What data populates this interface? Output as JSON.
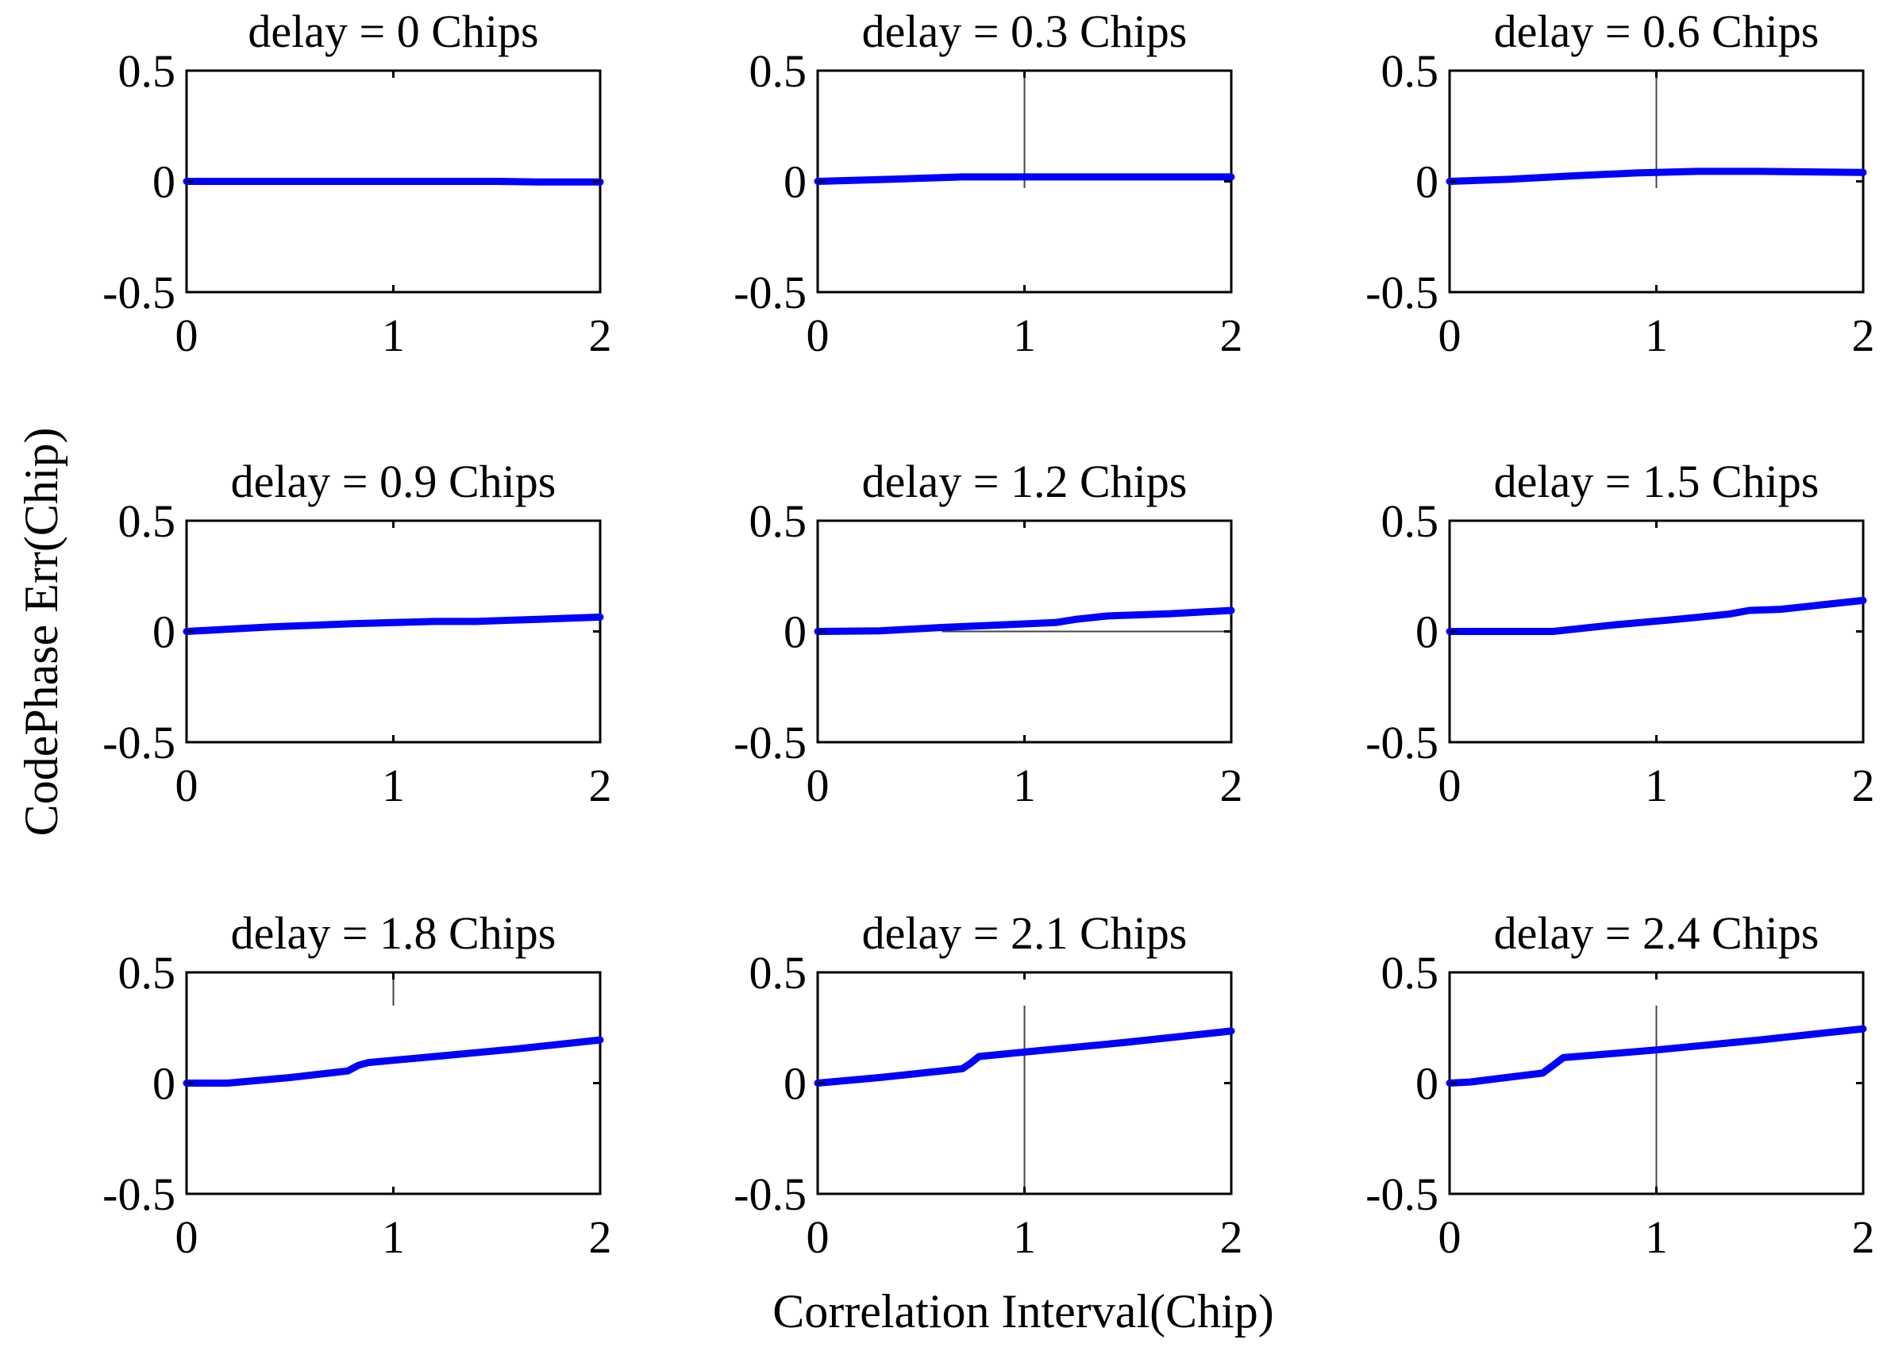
{
  "figure": {
    "ylabel": "CodePhase Err(Chip)",
    "xlabel": "Correlation Interval(Chip)"
  },
  "colors": {
    "series": "#0000ff",
    "axes": "#000000",
    "marker": "#444444"
  },
  "chart_data": [
    {
      "type": "line",
      "title": "delay = 0 Chips",
      "xlim": [
        0,
        2
      ],
      "ylim": [
        -0.5,
        0.5
      ],
      "xticks": [
        "0",
        "1",
        "2"
      ],
      "yticks": [
        "0.5",
        "0",
        "-0.5"
      ],
      "grid": false,
      "series": [
        {
          "x": [
            0,
            0.5,
            1.0,
            1.5,
            1.7,
            2.0
          ],
          "y": [
            0,
            0,
            0,
            0,
            -0.003,
            -0.003
          ]
        }
      ],
      "markers": []
    },
    {
      "type": "line",
      "title": "delay = 0.3 Chips",
      "xlim": [
        0,
        2
      ],
      "ylim": [
        -0.5,
        0.5
      ],
      "xticks": [
        "0",
        "1",
        "2"
      ],
      "yticks": [
        "0.5",
        "0",
        "-0.5"
      ],
      "grid": false,
      "series": [
        {
          "x": [
            0,
            0.3,
            0.7,
            1.0,
            1.5,
            2.0
          ],
          "y": [
            0,
            0.008,
            0.02,
            0.02,
            0.02,
            0.02
          ]
        }
      ],
      "markers": [
        {
          "x": 1,
          "y": [
            -0.03,
            0.5
          ]
        }
      ]
    },
    {
      "type": "line",
      "title": "delay = 0.6 Chips",
      "xlim": [
        0,
        2
      ],
      "ylim": [
        -0.5,
        0.5
      ],
      "xticks": [
        "0",
        "1",
        "2"
      ],
      "yticks": [
        "0.5",
        "0",
        "-0.5"
      ],
      "grid": false,
      "series": [
        {
          "x": [
            0,
            0.3,
            0.6,
            0.9,
            1.2,
            1.5,
            2.0
          ],
          "y": [
            0,
            0.01,
            0.025,
            0.038,
            0.045,
            0.045,
            0.04
          ]
        }
      ],
      "markers": [
        {
          "x": 1,
          "y": [
            -0.03,
            0.5
          ]
        }
      ]
    },
    {
      "type": "line",
      "title": "delay = 0.9 Chips",
      "xlim": [
        0,
        2
      ],
      "ylim": [
        -0.5,
        0.5
      ],
      "xticks": [
        "0",
        "1",
        "2"
      ],
      "yticks": [
        "0.5",
        "0",
        "-0.5"
      ],
      "grid": false,
      "series": [
        {
          "x": [
            0,
            0.4,
            0.8,
            1.2,
            1.4,
            1.7,
            2.0
          ],
          "y": [
            0,
            0.02,
            0.035,
            0.045,
            0.045,
            0.055,
            0.065
          ]
        }
      ],
      "markers": []
    },
    {
      "type": "line",
      "title": "delay = 1.2 Chips",
      "xlim": [
        0,
        2
      ],
      "ylim": [
        -0.5,
        0.5
      ],
      "xticks": [
        "0",
        "1",
        "2"
      ],
      "yticks": [
        "0.5",
        "0",
        "-0.5"
      ],
      "grid": false,
      "series": [
        {
          "x": [
            0,
            0.3,
            0.6,
            0.9,
            1.15,
            1.25,
            1.4,
            1.7,
            2.0
          ],
          "y": [
            0,
            0.003,
            0.018,
            0.03,
            0.04,
            0.055,
            0.07,
            0.08,
            0.095
          ]
        }
      ],
      "markers": [
        {
          "x0": 0.6,
          "x1": 2,
          "y": 0
        }
      ]
    },
    {
      "type": "line",
      "title": "delay = 1.5 Chips",
      "xlim": [
        0,
        2
      ],
      "ylim": [
        -0.5,
        0.5
      ],
      "xticks": [
        "0",
        "1",
        "2"
      ],
      "yticks": [
        "0.5",
        "0",
        "-0.5"
      ],
      "grid": false,
      "series": [
        {
          "x": [
            0,
            0.5,
            0.8,
            1.1,
            1.35,
            1.45,
            1.6,
            2.0
          ],
          "y": [
            0,
            0,
            0.03,
            0.055,
            0.078,
            0.095,
            0.1,
            0.14
          ]
        }
      ],
      "markers": []
    },
    {
      "type": "line",
      "title": "delay = 1.8 Chips",
      "xlim": [
        0,
        2
      ],
      "ylim": [
        -0.5,
        0.5
      ],
      "xticks": [
        "0",
        "1",
        "2"
      ],
      "yticks": [
        "0.5",
        "0",
        "-0.5"
      ],
      "grid": false,
      "series": [
        {
          "x": [
            0,
            0.2,
            0.5,
            0.78,
            0.83,
            0.88,
            1.2,
            1.6,
            2.0
          ],
          "y": [
            0,
            0,
            0.025,
            0.055,
            0.08,
            0.093,
            0.12,
            0.155,
            0.195
          ]
        }
      ],
      "markers": [
        {
          "x": 1,
          "y": [
            0.35,
            0.5
          ]
        }
      ]
    },
    {
      "type": "line",
      "title": "delay = 2.1 Chips",
      "xlim": [
        0,
        2
      ],
      "ylim": [
        -0.5,
        0.5
      ],
      "xticks": [
        "0",
        "1",
        "2"
      ],
      "yticks": [
        "0.5",
        "0",
        "-0.5"
      ],
      "grid": false,
      "series": [
        {
          "x": [
            0,
            0.3,
            0.7,
            0.74,
            0.78,
            1.0,
            1.5,
            2.0
          ],
          "y": [
            0,
            0.025,
            0.065,
            0.09,
            0.12,
            0.14,
            0.185,
            0.235
          ]
        }
      ],
      "markers": [
        {
          "x": 1,
          "y": [
            -0.5,
            0.35
          ]
        }
      ]
    },
    {
      "type": "line",
      "title": "delay = 2.4 Chips",
      "xlim": [
        0,
        2
      ],
      "ylim": [
        -0.5,
        0.5
      ],
      "xticks": [
        "0",
        "1",
        "2"
      ],
      "yticks": [
        "0.5",
        "0",
        "-0.5"
      ],
      "grid": false,
      "series": [
        {
          "x": [
            0,
            0.1,
            0.45,
            0.5,
            0.55,
            1.0,
            1.5,
            2.0
          ],
          "y": [
            0,
            0.005,
            0.045,
            0.08,
            0.115,
            0.15,
            0.195,
            0.245
          ]
        }
      ],
      "markers": [
        {
          "x": 1,
          "y": [
            -0.5,
            0.35
          ]
        }
      ]
    }
  ]
}
